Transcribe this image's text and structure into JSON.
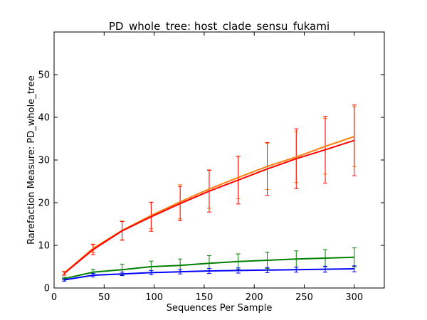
{
  "chart_data": {
    "type": "line",
    "title": "PD_whole_tree: host_clade_sensu_fukami",
    "xlabel": "Sequences Per Sample",
    "ylabel": "Rarefaction Measure: PD_whole_tree",
    "xlim": [
      0,
      330
    ],
    "ylim": [
      0,
      60
    ],
    "xticks": [
      0,
      50,
      100,
      150,
      200,
      250,
      300
    ],
    "yticks": [
      0,
      10,
      20,
      30,
      40,
      50
    ],
    "grid": false,
    "x": [
      10,
      39,
      68,
      97,
      126,
      155,
      184,
      213,
      242,
      271,
      300
    ],
    "series": [
      {
        "color": "#ff7f0e",
        "values": [
          3.5,
          9.3,
          13.5,
          17.0,
          20.2,
          23.2,
          25.9,
          28.5,
          30.7,
          33.2,
          35.5
        ],
        "errors": [
          0.4,
          1.0,
          2.2,
          3.1,
          4.0,
          4.5,
          5.0,
          5.4,
          6.0,
          6.5,
          7.0
        ]
      },
      {
        "color": "#ff0000",
        "values": [
          3.4,
          9.0,
          13.4,
          16.7,
          19.8,
          22.7,
          25.3,
          27.9,
          30.3,
          32.4,
          34.6
        ],
        "errors": [
          0.4,
          1.2,
          2.2,
          3.4,
          4.0,
          4.9,
          5.6,
          6.2,
          7.0,
          7.8,
          8.3
        ]
      },
      {
        "color": "#008000",
        "values": [
          2.2,
          3.7,
          4.3,
          5.0,
          5.3,
          5.8,
          6.2,
          6.5,
          6.8,
          7.0,
          7.2
        ],
        "errors": [
          0.3,
          0.7,
          1.3,
          1.3,
          1.5,
          1.8,
          1.8,
          1.9,
          1.9,
          2.0,
          2.2
        ]
      },
      {
        "color": "#0000ff",
        "values": [
          1.9,
          3.0,
          3.3,
          3.6,
          3.8,
          4.0,
          4.1,
          4.2,
          4.3,
          4.4,
          4.5
        ],
        "errors": [
          0.3,
          0.4,
          0.4,
          0.5,
          0.5,
          0.6,
          0.6,
          0.6,
          0.6,
          0.7,
          0.7
        ]
      }
    ]
  }
}
